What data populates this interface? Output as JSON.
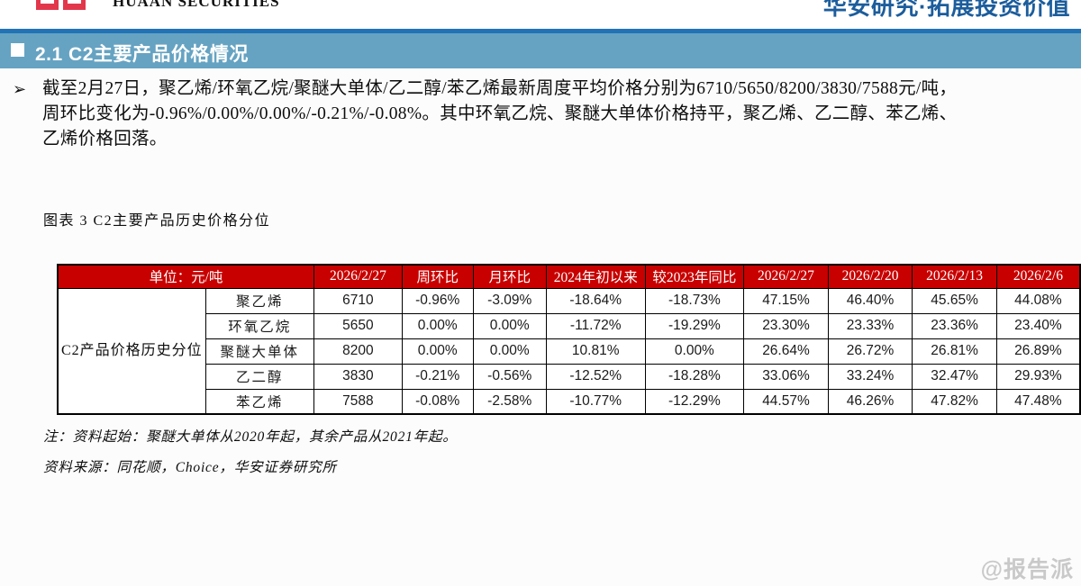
{
  "brand": {
    "name": "HUAAN SECURITIES",
    "slogan": "华安研究·拓展投资价值"
  },
  "section": {
    "title": "2.1 C2主要产品价格情况"
  },
  "summary": {
    "bullet": "➢",
    "lines": [
      "截至2月27日，聚乙烯/环氧乙烷/聚醚大单体/乙二醇/苯乙烯最新周度平均价格分别为6710/5650/8200/3830/7588元/吨，",
      "周环比变化为-0.96%/0.00%/0.00%/-0.21%/-0.08%。其中环氧乙烷、聚醚大单体价格持平，聚乙烯、乙二醇、苯乙烯、",
      "乙烯价格回落。"
    ]
  },
  "figure": {
    "caption": "图表 3 C2主要产品历史价格分位"
  },
  "table": {
    "row_group_label": "C2产品价格历史分位",
    "header": [
      "单位：元/吨",
      "2026/2/27",
      "周环比",
      "月环比",
      "2024年初以来",
      "较2023年同比",
      "2026/2/27",
      "2026/2/20",
      "2026/2/13",
      "2026/2/6"
    ],
    "rows": [
      {
        "product": "聚乙烯",
        "values": [
          "6710",
          "-0.96%",
          "-3.09%",
          "-18.64%",
          "-18.73%",
          "47.15%",
          "46.40%",
          "45.65%",
          "44.08%"
        ],
        "styles": [
          "plain",
          "down",
          "down",
          "down",
          "down",
          "plain",
          "plain",
          "plain",
          "plain"
        ]
      },
      {
        "product": "环氧乙烷",
        "values": [
          "5650",
          "0.00%",
          "0.00%",
          "-11.72%",
          "-19.29%",
          "23.30%",
          "23.33%",
          "23.36%",
          "23.40%"
        ],
        "styles": [
          "plain",
          "plain",
          "plain",
          "down",
          "down",
          "plain",
          "plain",
          "plain",
          "plain"
        ]
      },
      {
        "product": "聚醚大单体",
        "values": [
          "8200",
          "0.00%",
          "0.00%",
          "10.81%",
          "0.00%",
          "26.64%",
          "26.72%",
          "26.81%",
          "26.89%"
        ],
        "styles": [
          "plain",
          "plain",
          "plain",
          "up",
          "plain",
          "plain",
          "plain",
          "plain",
          "plain"
        ]
      },
      {
        "product": "乙二醇",
        "values": [
          "3830",
          "-0.21%",
          "-0.56%",
          "-12.52%",
          "-18.28%",
          "33.06%",
          "33.24%",
          "32.47%",
          "29.93%"
        ],
        "styles": [
          "plain",
          "down",
          "down",
          "down",
          "down",
          "plain",
          "plain",
          "plain",
          "plain"
        ]
      },
      {
        "product": "苯乙烯",
        "values": [
          "7588",
          "-0.08%",
          "-2.58%",
          "-10.77%",
          "-12.29%",
          "44.57%",
          "46.26%",
          "47.82%",
          "47.48%"
        ],
        "styles": [
          "plain",
          "down",
          "down",
          "down",
          "down",
          "plain",
          "plain",
          "plain",
          "plain"
        ]
      }
    ]
  },
  "notes": {
    "note": "注：资料起始：聚醚大单体从2020年起，其余产品从2021年起。",
    "source": "资料来源：同花顺，Choice，华安证券研究所"
  },
  "watermark": "@报告派",
  "colors": {
    "header_red": "#C80000",
    "down_bg": "#C6EFCE",
    "down_text": "#00A14E",
    "up_bg": "#FFC7CE",
    "up_text": "#C00000",
    "bar_blue": "#66A3C2",
    "line_blue": "#2273B6",
    "slogan_blue": "#1C5D9C",
    "logo_red": "#E2374B"
  }
}
